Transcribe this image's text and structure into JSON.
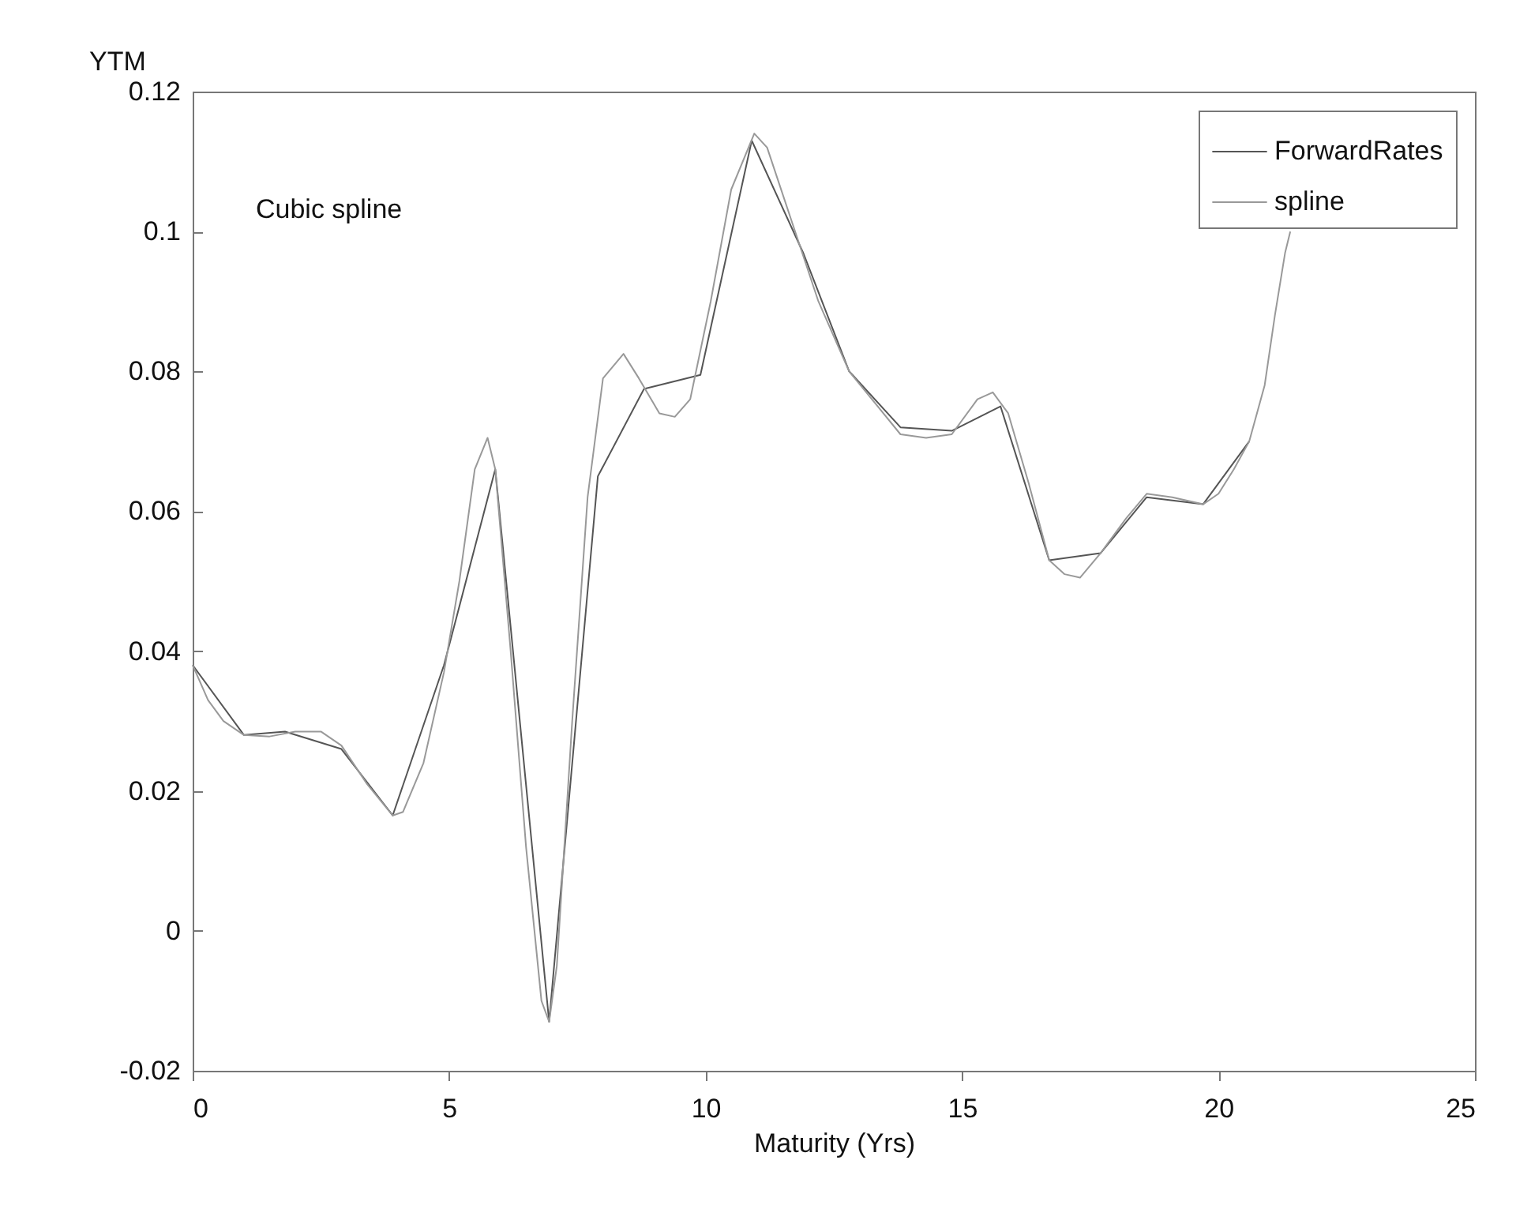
{
  "chart_data": {
    "type": "line",
    "xlabel": "Maturity (Yrs)",
    "ylabel": "YTM",
    "annotations": [
      "Cubic spline"
    ],
    "xlim": [
      0,
      25
    ],
    "xticks": [
      0,
      5,
      10,
      15,
      20,
      25
    ],
    "ylim": [
      -0.02,
      0.12
    ],
    "yticks": [
      -0.02,
      0,
      0.02,
      0.04,
      0.06,
      0.08,
      0.1,
      0.12
    ],
    "legend": "top right",
    "grid": false,
    "marker": "none",
    "line_style": "solid",
    "series": [
      {
        "name": "ForwardRates",
        "color": "#555555",
        "x": [
          0,
          1,
          1.8,
          2.9,
          3.9,
          4.9,
          5.9,
          6.95,
          7.9,
          8.8,
          9.9,
          10.9,
          11.9,
          12.8,
          13.8,
          14.8,
          15.75,
          16.7,
          17.7,
          18.6,
          19.7,
          20.6
        ],
        "values": [
          0.038,
          0.028,
          0.0285,
          0.026,
          0.0165,
          0.038,
          0.066,
          -0.013,
          0.065,
          0.0775,
          0.0795,
          0.113,
          0.097,
          0.08,
          0.072,
          0.0715,
          0.075,
          0.053,
          0.054,
          0.062,
          0.061,
          0.07
        ]
      },
      {
        "name": "spline",
        "color": "#999999",
        "x": [
          0,
          0.3,
          0.6,
          1,
          1.5,
          2,
          2.5,
          2.9,
          3.4,
          3.9,
          4.1,
          4.5,
          4.9,
          5.2,
          5.5,
          5.75,
          5.9,
          6.2,
          6.5,
          6.8,
          6.95,
          7.1,
          7.4,
          7.7,
          8,
          8.4,
          8.7,
          9.1,
          9.4,
          9.7,
          10.1,
          10.5,
          10.95,
          11.2,
          11.7,
          12.2,
          12.8,
          13.3,
          13.8,
          14.3,
          14.8,
          15.3,
          15.6,
          15.9,
          16.3,
          16.7,
          17.0,
          17.3,
          17.7,
          18.2,
          18.6,
          19.1,
          19.7,
          20.0,
          20.3,
          20.6,
          20.9,
          21.1,
          21.3,
          21.4
        ],
        "values": [
          0.038,
          0.033,
          0.03,
          0.028,
          0.0278,
          0.0285,
          0.0285,
          0.0265,
          0.021,
          0.0165,
          0.017,
          0.024,
          0.037,
          0.05,
          0.066,
          0.0705,
          0.066,
          0.04,
          0.012,
          -0.01,
          -0.013,
          -0.005,
          0.03,
          0.062,
          0.079,
          0.0825,
          0.079,
          0.074,
          0.0735,
          0.076,
          0.09,
          0.106,
          0.114,
          0.112,
          0.101,
          0.09,
          0.08,
          0.0755,
          0.071,
          0.0705,
          0.071,
          0.076,
          0.077,
          0.074,
          0.064,
          0.053,
          0.051,
          0.0505,
          0.054,
          0.059,
          0.0625,
          0.062,
          0.061,
          0.0625,
          0.066,
          0.07,
          0.078,
          0.088,
          0.097,
          0.1
        ]
      }
    ]
  }
}
